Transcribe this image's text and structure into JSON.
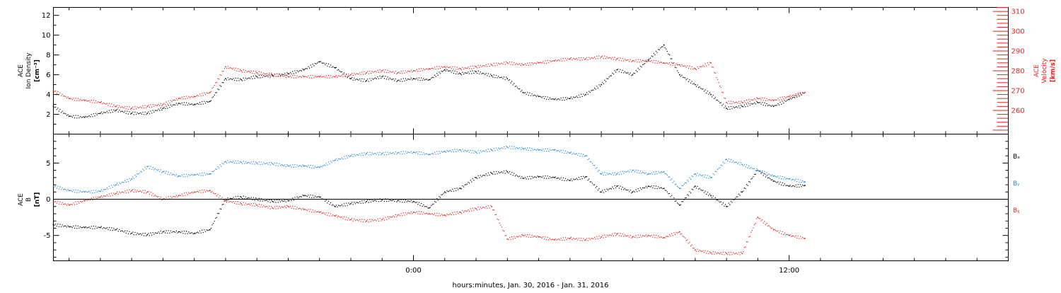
{
  "xaxis": {
    "title": "hours:minutes, Jan. 30, 2016 - Jan. 31, 2016",
    "ticks": [
      {
        "hour": 0,
        "label": "0:00"
      },
      {
        "hour": 12,
        "label": "12:00"
      }
    ],
    "range": [
      -11.5,
      19.0
    ]
  },
  "chart_data": [
    {
      "type": "scatter",
      "panel": "ion density and velocity",
      "ylabel": [
        "ACE",
        "Ion Density",
        "[cm⁻³]"
      ],
      "ylim": [
        0,
        12.8
      ],
      "yticks": [
        2,
        4,
        6,
        8,
        10,
        12
      ],
      "y2label": [
        "ACE",
        "Velocity",
        "[km/s]"
      ],
      "y2lim": [
        248,
        312
      ],
      "y2ticks": [
        260,
        270,
        280,
        290,
        300,
        310
      ],
      "series": [
        {
          "color": "#000000",
          "axis": "left",
          "x": [
            -11.5,
            -11,
            -10.5,
            -10,
            -9.5,
            -9,
            -8.5,
            -8,
            -7.5,
            -7,
            -6.5,
            -6,
            -5.5,
            -5,
            -4.5,
            -4,
            -3.5,
            -3,
            -2.5,
            -2,
            -1.5,
            -1,
            -0.5,
            0,
            0.5,
            1,
            1.5,
            2,
            2.5,
            3,
            3.5,
            4,
            4.5,
            5,
            5.5,
            6,
            6.5,
            7,
            7.5,
            8,
            8.5,
            9,
            9.5,
            10,
            10.5,
            11,
            11.5,
            12,
            12.5
          ],
          "y": [
            2.8,
            1.8,
            1.7,
            2.1,
            2.4,
            2.1,
            2.1,
            2.6,
            3.1,
            3.0,
            3.3,
            5.6,
            5.5,
            5.8,
            5.9,
            6.1,
            6.5,
            7.3,
            6.7,
            5.6,
            5.4,
            5.8,
            5.4,
            5.6,
            5.5,
            6.5,
            6.1,
            6.3,
            5.9,
            5.6,
            4.2,
            3.8,
            3.5,
            3.6,
            4.0,
            5.0,
            6.5,
            6.0,
            7.5,
            9.0,
            6.0,
            5.0,
            4.0,
            2.6,
            2.8,
            3.2,
            2.8,
            3.5,
            4.2
          ]
        },
        {
          "color": "#e8221c",
          "axis": "right",
          "x": [
            -11.5,
            -11,
            -10.5,
            -10,
            -9.5,
            -9,
            -8.5,
            -8,
            -7.5,
            -7,
            -6.5,
            -6,
            -5.5,
            -5,
            -4.5,
            -4,
            -3.5,
            -3,
            -2.5,
            -2,
            -1.5,
            -1,
            -0.5,
            0,
            0.5,
            1,
            1.5,
            2,
            2.5,
            3,
            3.5,
            4,
            4.5,
            5,
            5.5,
            6,
            6.5,
            7,
            7.5,
            8,
            8.5,
            9,
            9.5,
            10,
            10.5,
            11,
            11.5,
            12,
            12.5
          ],
          "y": [
            270,
            266,
            265,
            264,
            262,
            261,
            262,
            263,
            266,
            267,
            269,
            282,
            280,
            279,
            278,
            277,
            277,
            277,
            277,
            278,
            279,
            280,
            279,
            280,
            281,
            282,
            281,
            282,
            283,
            284,
            283,
            284,
            285,
            286,
            286,
            287,
            286,
            285,
            285,
            284,
            283,
            281,
            284,
            264,
            264,
            266,
            265,
            267,
            269
          ]
        }
      ]
    },
    {
      "type": "scatter",
      "panel": "magnetic field components",
      "ylabel": [
        "ACE",
        "B",
        "[nT]"
      ],
      "ylim": [
        -8.5,
        9.0
      ],
      "yticks": [
        -5,
        0,
        5
      ],
      "zero_line": true,
      "series": [
        {
          "name": "Bₓ",
          "color": "#000000",
          "x": [
            -11.5,
            -11,
            -10.5,
            -10,
            -9.5,
            -9,
            -8.5,
            -8,
            -7.5,
            -7,
            -6.5,
            -6,
            -5.5,
            -5,
            -4.5,
            -4,
            -3.5,
            -3,
            -2.5,
            -2,
            -1.5,
            -1,
            -0.5,
            0,
            0.5,
            1,
            1.5,
            2,
            2.5,
            3,
            3.5,
            4,
            4.5,
            5,
            5.5,
            6,
            6.5,
            7,
            7.5,
            8,
            8.5,
            9,
            9.5,
            10,
            10.5,
            11,
            11.5,
            12,
            12.5
          ],
          "y": [
            -3.5,
            -3.8,
            -3.9,
            -3.9,
            -4.2,
            -4.7,
            -4.9,
            -4.5,
            -4.5,
            -4.7,
            -4.2,
            0.0,
            0.3,
            0.0,
            -0.3,
            -0.2,
            0.5,
            0.3,
            -1.0,
            -0.6,
            -0.3,
            -0.1,
            -0.2,
            -0.3,
            -1.2,
            1.0,
            1.5,
            3.0,
            3.6,
            3.8,
            2.9,
            3.1,
            3.0,
            2.6,
            3.1,
            1.0,
            1.8,
            1.0,
            1.8,
            1.5,
            -0.8,
            1.8,
            0.5,
            -1.0,
            1.0,
            4.0,
            2.5,
            1.8,
            1.9
          ]
        },
        {
          "name": "Bᵧ",
          "color": "#1e88e0",
          "x": [
            -11.5,
            -11,
            -10.5,
            -10,
            -9.5,
            -9,
            -8.5,
            -8,
            -7.5,
            -7,
            -6.5,
            -6,
            -5.5,
            -5,
            -4.5,
            -4,
            -3.5,
            -3,
            -2.5,
            -2,
            -1.5,
            -1,
            -0.5,
            0,
            0.5,
            1,
            1.5,
            2,
            2.5,
            3,
            3.5,
            4,
            4.5,
            5,
            5.5,
            6,
            6.5,
            7,
            7.5,
            8,
            8.5,
            9,
            9.5,
            10,
            10.5,
            11,
            11.5,
            12,
            12.5
          ],
          "y": [
            1.8,
            1.2,
            1.0,
            1.1,
            2.0,
            2.8,
            4.5,
            3.8,
            3.2,
            3.4,
            3.5,
            5.2,
            5.1,
            5.0,
            4.9,
            4.6,
            4.6,
            4.4,
            5.4,
            6.0,
            6.3,
            6.3,
            6.4,
            6.5,
            6.2,
            6.6,
            6.8,
            6.5,
            6.8,
            7.2,
            7.0,
            6.8,
            6.8,
            6.4,
            6.0,
            3.5,
            3.5,
            4.0,
            3.5,
            3.8,
            1.5,
            3.5,
            3.0,
            5.5,
            4.8,
            4.0,
            3.2,
            2.8,
            2.4
          ]
        },
        {
          "name": "Bᵪ",
          "color": "#e8221c",
          "x": [
            -11.5,
            -11,
            -10.5,
            -10,
            -9.5,
            -9,
            -8.5,
            -8,
            -7.5,
            -7,
            -6.5,
            -6,
            -5.5,
            -5,
            -4.5,
            -4,
            -3.5,
            -3,
            -2.5,
            -2,
            -1.5,
            -1,
            -0.5,
            0,
            0.5,
            1,
            1.5,
            2,
            2.5,
            3,
            3.5,
            4,
            4.5,
            5,
            5.5,
            6,
            6.5,
            7,
            7.5,
            8,
            8.5,
            9,
            9.5,
            10,
            10.5,
            11,
            11.5,
            12,
            12.5
          ],
          "y": [
            -0.3,
            -0.8,
            -0.2,
            0.3,
            0.8,
            1.2,
            1.0,
            0.0,
            0.5,
            1.0,
            1.2,
            -0.2,
            -0.6,
            -0.8,
            -1.2,
            -1.0,
            -1.4,
            -1.8,
            -2.3,
            -2.8,
            -3.0,
            -2.8,
            -2.2,
            -1.8,
            -2.0,
            -2.2,
            -1.8,
            -1.3,
            -1.0,
            -5.5,
            -5.0,
            -5.2,
            -5.6,
            -5.4,
            -5.6,
            -5.2,
            -4.8,
            -5.2,
            -5.0,
            -5.3,
            -4.5,
            -7.0,
            -7.4,
            -7.5,
            -7.5,
            -2.5,
            -4.2,
            -5.0,
            -5.4
          ]
        }
      ]
    }
  ]
}
